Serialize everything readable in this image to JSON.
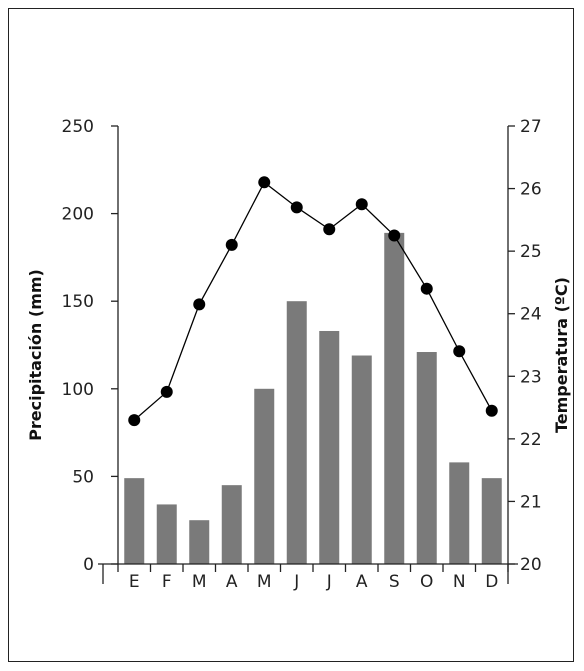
{
  "chart_data": {
    "type": "bar",
    "categories": [
      "E",
      "F",
      "M",
      "A",
      "M",
      "J",
      "J",
      "A",
      "S",
      "O",
      "N",
      "D"
    ],
    "series": [
      {
        "type": "bar",
        "axis": "left",
        "color": "#7a7a7a",
        "values": [
          49,
          34,
          25,
          45,
          100,
          150,
          133,
          119,
          189,
          121,
          58,
          49
        ]
      },
      {
        "type": "line",
        "axis": "right",
        "color": "#000000",
        "values": [
          22.3,
          22.75,
          24.15,
          25.1,
          26.1,
          25.7,
          25.35,
          25.75,
          25.25,
          24.4,
          23.4,
          22.45
        ]
      }
    ],
    "ylabel_left": "Precipitación (mm)",
    "ylabel_right": "Temperatura (ºC)",
    "ylim_left": [
      0,
      250
    ],
    "yticks_left": [
      0,
      50,
      100,
      150,
      200,
      250
    ],
    "ylim_right": [
      20,
      27
    ],
    "yticks_right": [
      20,
      21,
      22,
      23,
      24,
      25,
      26,
      27
    ],
    "grid": false,
    "legend": "none"
  }
}
